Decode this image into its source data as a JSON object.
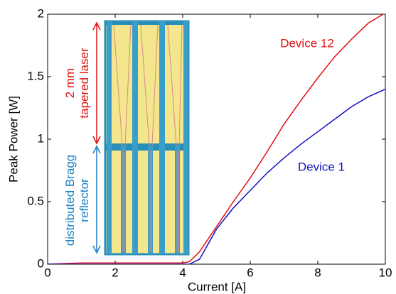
{
  "chart_data": {
    "type": "line",
    "xlabel": "Current [A]",
    "ylabel": "Peak Power [W]",
    "x": [
      0,
      1,
      2,
      3,
      4,
      4.2,
      4.5,
      5,
      5.5,
      6,
      6.5,
      7,
      7.5,
      8,
      8.5,
      9,
      9.5,
      10
    ],
    "series": [
      {
        "name": "Device 12",
        "color": "#e01010",
        "values": [
          0,
          0.01,
          0.01,
          0.01,
          0.01,
          0.02,
          0.1,
          0.3,
          0.5,
          0.69,
          0.9,
          1.12,
          1.31,
          1.49,
          1.66,
          1.8,
          1.93,
          2.01
        ]
      },
      {
        "name": "Device 1",
        "color": "#1010c0",
        "values": [
          0,
          0,
          0,
          0,
          0,
          0,
          0.04,
          0.28,
          0.45,
          0.59,
          0.73,
          0.85,
          0.96,
          1.06,
          1.16,
          1.26,
          1.34,
          1.4
        ]
      }
    ],
    "xlim": [
      0,
      10
    ],
    "xticks": [
      0,
      2,
      4,
      6,
      8,
      10
    ],
    "ylim": [
      0,
      2
    ],
    "yticks": [
      0,
      0.5,
      1,
      1.5,
      2
    ],
    "annotations": [
      {
        "lines": [
          "2 mm",
          "tapered laser"
        ],
        "color": "#e01010"
      },
      {
        "lines": [
          "distributed Bragg",
          "reflector"
        ],
        "color": "#1a7fc0"
      }
    ]
  }
}
